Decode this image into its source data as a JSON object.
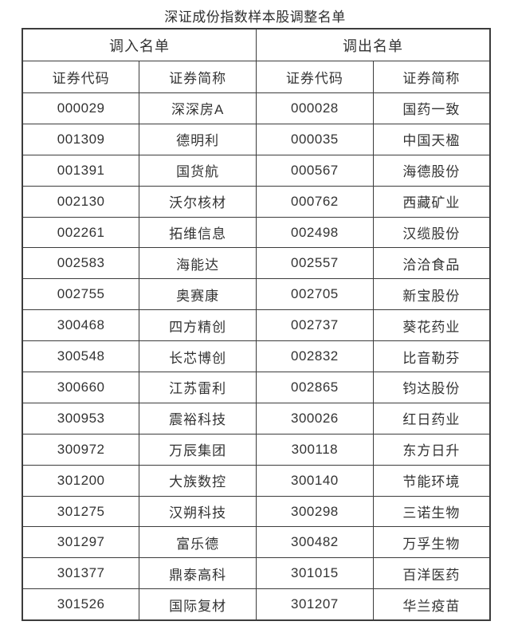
{
  "title": "深证成份指数样本股调整名单",
  "colors": {
    "background": "#ffffff",
    "border": "#3c3c3c",
    "text": "#333333"
  },
  "table": {
    "groups": [
      {
        "label": "调入名单"
      },
      {
        "label": "调出名单"
      }
    ],
    "subheaders": [
      "证券代码",
      "证券简称",
      "证券代码",
      "证券简称"
    ],
    "rows": [
      [
        "000029",
        "深深房A",
        "000028",
        "国药一致"
      ],
      [
        "001309",
        "德明利",
        "000035",
        "中国天楹"
      ],
      [
        "001391",
        "国货航",
        "000567",
        "海德股份"
      ],
      [
        "002130",
        "沃尔核材",
        "000762",
        "西藏矿业"
      ],
      [
        "002261",
        "拓维信息",
        "002498",
        "汉缆股份"
      ],
      [
        "002583",
        "海能达",
        "002557",
        "洽洽食品"
      ],
      [
        "002755",
        "奥赛康",
        "002705",
        "新宝股份"
      ],
      [
        "300468",
        "四方精创",
        "002737",
        "葵花药业"
      ],
      [
        "300548",
        "长芯博创",
        "002832",
        "比音勒芬"
      ],
      [
        "300660",
        "江苏雷利",
        "002865",
        "钧达股份"
      ],
      [
        "300953",
        "震裕科技",
        "300026",
        "红日药业"
      ],
      [
        "300972",
        "万辰集团",
        "300118",
        "东方日升"
      ],
      [
        "301200",
        "大族数控",
        "300140",
        "节能环境"
      ],
      [
        "301275",
        "汉朔科技",
        "300298",
        "三诺生物"
      ],
      [
        "301297",
        "富乐德",
        "300482",
        "万孚生物"
      ],
      [
        "301377",
        "鼎泰高科",
        "301015",
        "百洋医药"
      ],
      [
        "301526",
        "国际复材",
        "301207",
        "华兰疫苗"
      ]
    ]
  }
}
